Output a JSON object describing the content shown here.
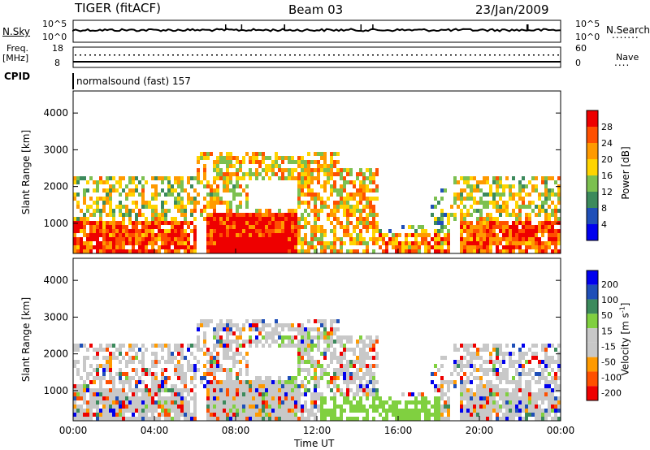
{
  "header": {
    "radar": "TIGER (fitACF)",
    "beam": "Beam 03",
    "date": "23/Jan/2009"
  },
  "strips": {
    "nsky_label": "N.Sky",
    "nsky_ticks": [
      "10^5",
      "10^0"
    ],
    "nsearch_label": "N.Search",
    "nsearch_ticks": [
      "10^5",
      "10^0"
    ],
    "freq_label_line1": "Freq.",
    "freq_label_line2": "[MHz]",
    "freq_ticks": [
      "18",
      "8"
    ],
    "nave_label": "Nave",
    "nave_ticks": [
      "60",
      "0"
    ],
    "cpid_label": "CPID",
    "cpid_text": "normalsound (fast) 157"
  },
  "colors": {
    "power": [
      "#0000ee",
      "#1f4fb8",
      "#3c8a5c",
      "#7cc050",
      "#ffd400",
      "#ff9a00",
      "#ff5000",
      "#ee0000"
    ],
    "velocity": [
      "#ee0000",
      "#ff5000",
      "#ff9a00",
      "#c8c8c8",
      "#c8c8c8",
      "#80d040",
      "#3c8a5c",
      "#1f4fb8",
      "#0000ee"
    ]
  },
  "chart_data": [
    {
      "type": "heatmap",
      "quantity": "Power",
      "ylabel": "Slant Range [km]",
      "xlim": [
        "00:00",
        "24:00"
      ],
      "ylim": [
        180,
        4600
      ],
      "yticks": [
        "1000",
        "2000",
        "3000",
        "4000"
      ],
      "colorbar_label": "Power [dB]",
      "colorbar_ticks": [
        "4",
        "8",
        "12",
        "16",
        "20",
        "24",
        "28"
      ]
    },
    {
      "type": "heatmap",
      "quantity": "Velocity",
      "ylabel": "Slant Range [km]",
      "xlabel": "Time UT",
      "xlim": [
        "00:00",
        "24:00"
      ],
      "ylim": [
        180,
        4600
      ],
      "xticks": [
        "00:00",
        "04:00",
        "08:00",
        "12:00",
        "16:00",
        "20:00",
        "00:00"
      ],
      "yticks": [
        "1000",
        "2000",
        "3000",
        "4000"
      ],
      "colorbar_label": "Velocity [m s-1]",
      "colorbar_ticks": [
        "200",
        "100",
        "50",
        "15",
        "-15",
        "-50",
        "-100",
        "-200"
      ]
    }
  ]
}
